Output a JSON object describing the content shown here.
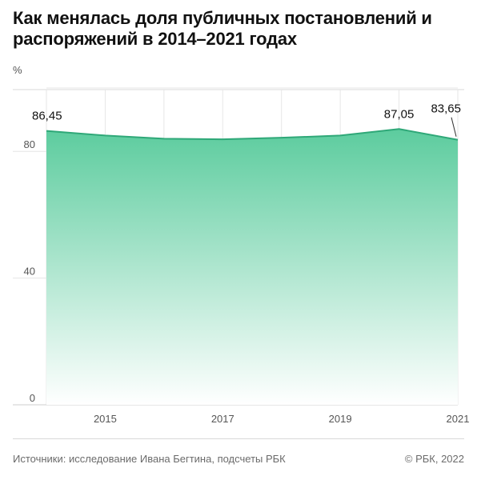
{
  "title": "Как менялась доля публичных постановлений и распоряжений в 2014–2021 годах",
  "footer": {
    "source": "Источники: исследование Ивана Бегтина, подсчеты РБК",
    "copyright": "© РБК, 2022"
  },
  "colors": {
    "line": "#2fa878",
    "fill_top": "#5ccc9e",
    "fill_bottom": "#ffffff",
    "grid": "#e6e6e6",
    "axis_text": "#555555"
  },
  "chart_data": {
    "type": "area",
    "x": [
      2014,
      2015,
      2016,
      2017,
      2018,
      2019,
      2020,
      2021
    ],
    "series": [
      {
        "values": [
          86.45,
          85.0,
          84.0,
          83.8,
          84.3,
          85.0,
          87.05,
          83.65
        ]
      }
    ],
    "x_tick_labels": [
      "2015",
      "2017",
      "2019",
      "2021"
    ],
    "x_ticks": [
      2015,
      2017,
      2019,
      2021
    ],
    "y_ticks": [
      0,
      40,
      80
    ],
    "y_unit_label": "%",
    "ylim": [
      0,
      100
    ],
    "xlim": [
      2014,
      2021
    ],
    "data_labels": [
      {
        "x": 2014,
        "text": "86,45"
      },
      {
        "x": 2020,
        "text": "87,05"
      },
      {
        "x": 2021,
        "text": "83,65"
      }
    ],
    "grid": true
  }
}
